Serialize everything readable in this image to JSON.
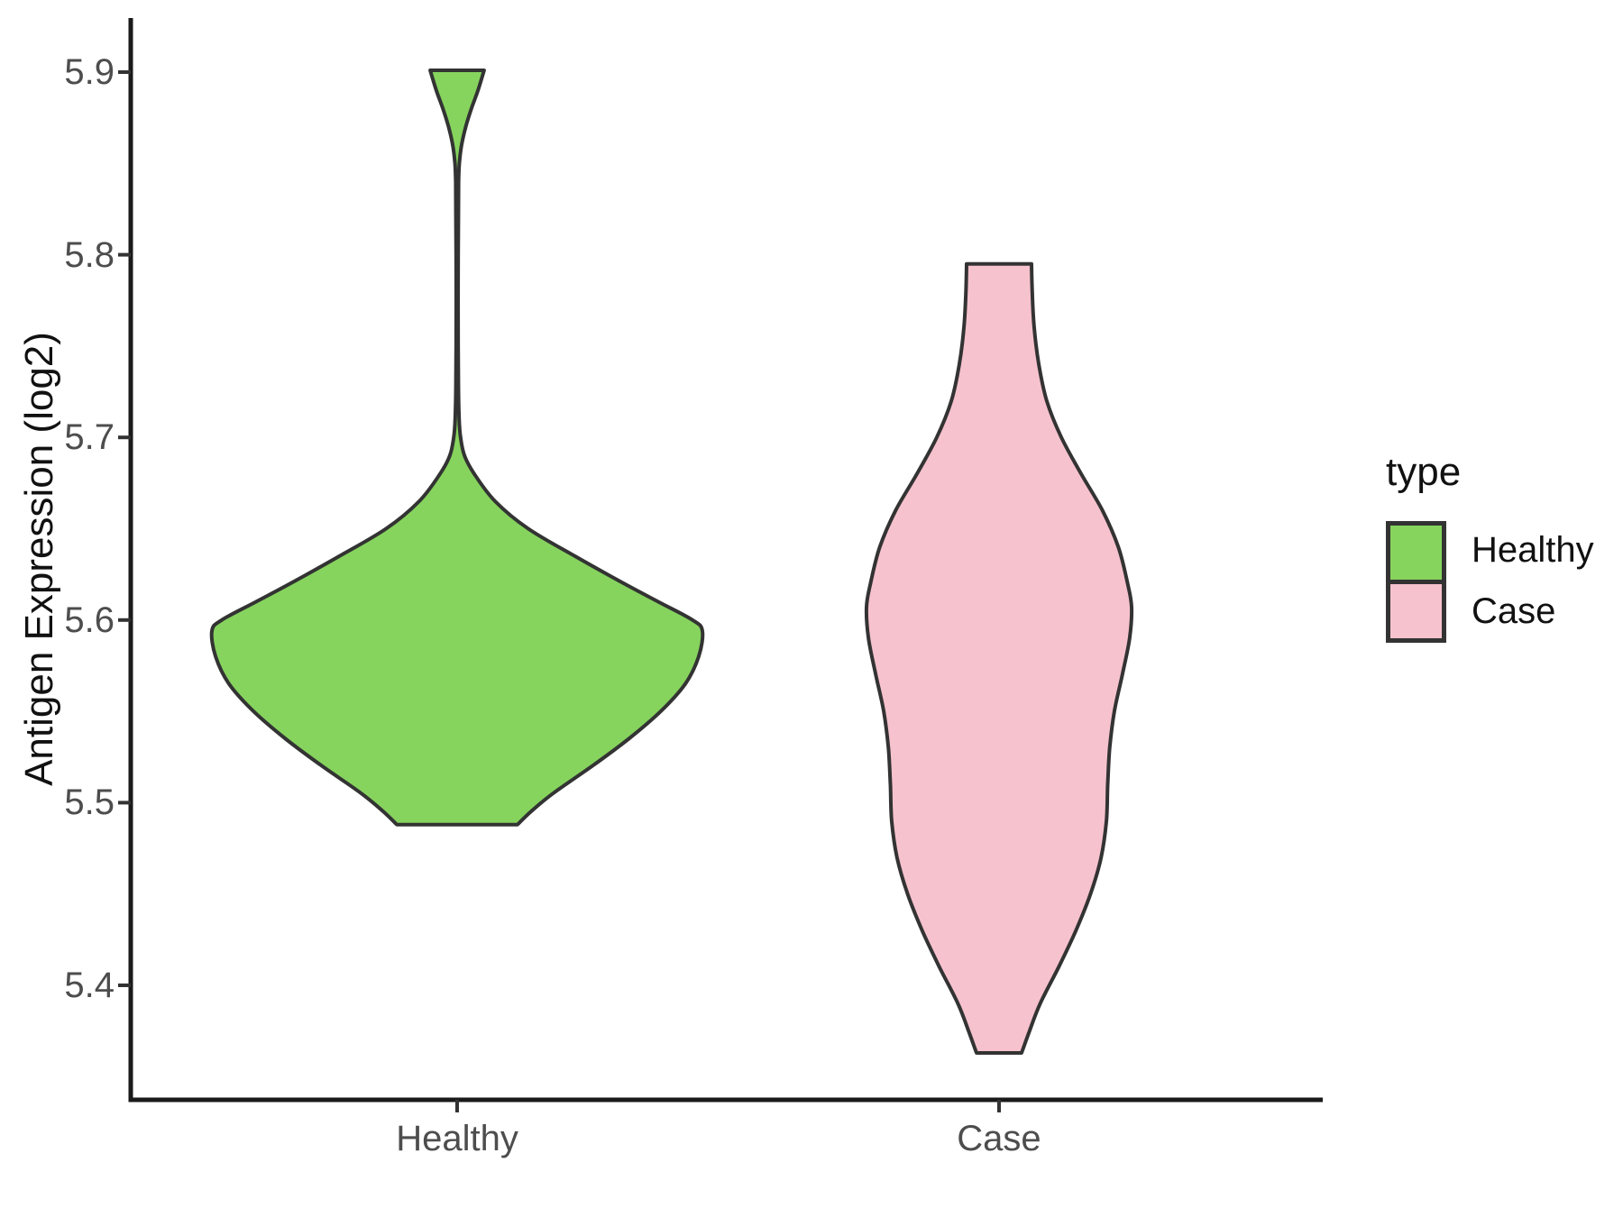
{
  "chart_data": {
    "type": "violin",
    "title": "",
    "xlabel": "",
    "ylabel": "Antigen Expression (log2)",
    "categories": [
      "Healthy",
      "Case"
    ],
    "y_ticks": [
      "5.4",
      "5.5",
      "5.6",
      "5.7",
      "5.8",
      "5.9"
    ],
    "ylim": [
      5.33,
      5.96
    ],
    "grid": "off",
    "legend": {
      "title": "type",
      "position": "right",
      "entries": [
        {
          "label": "Healthy",
          "color": "#86d45e"
        },
        {
          "label": "Case",
          "color": "#f6c2ce"
        }
      ]
    },
    "style": {
      "outline_color": "#333333",
      "axis_color": "#1a1a1a",
      "tick_color": "#333333",
      "tick_label_color": "#4d4d4d",
      "background": "#ffffff"
    },
    "series": [
      {
        "name": "Healthy",
        "fill": "#86d45e",
        "y_min": 5.49,
        "y_max": 5.9,
        "peak_y": 5.6,
        "max_width_rel": 1.0,
        "profile": [
          [
            5.901,
            0.11
          ],
          [
            5.89,
            0.085
          ],
          [
            5.88,
            0.058
          ],
          [
            5.87,
            0.035
          ],
          [
            5.86,
            0.018
          ],
          [
            5.85,
            0.009
          ],
          [
            5.84,
            0.006
          ],
          [
            5.82,
            0.005
          ],
          [
            5.79,
            0.004
          ],
          [
            5.76,
            0.004
          ],
          [
            5.73,
            0.005
          ],
          [
            5.71,
            0.008
          ],
          [
            5.7,
            0.014
          ],
          [
            5.69,
            0.03
          ],
          [
            5.68,
            0.07
          ],
          [
            5.665,
            0.155
          ],
          [
            5.65,
            0.29
          ],
          [
            5.635,
            0.48
          ],
          [
            5.62,
            0.68
          ],
          [
            5.61,
            0.82
          ],
          [
            5.6,
            0.96
          ],
          [
            5.594,
            1.0
          ],
          [
            5.58,
            0.985
          ],
          [
            5.565,
            0.93
          ],
          [
            5.55,
            0.83
          ],
          [
            5.535,
            0.7
          ],
          [
            5.52,
            0.55
          ],
          [
            5.505,
            0.39
          ],
          [
            5.495,
            0.3
          ],
          [
            5.488,
            0.246
          ]
        ]
      },
      {
        "name": "Case",
        "fill": "#f6c2ce",
        "y_min": 5.36,
        "y_max": 5.8,
        "peak_y": 5.61,
        "max_width_rel": 0.54,
        "profile": [
          [
            5.795,
            0.245
          ],
          [
            5.78,
            0.25
          ],
          [
            5.76,
            0.265
          ],
          [
            5.74,
            0.3
          ],
          [
            5.72,
            0.36
          ],
          [
            5.7,
            0.47
          ],
          [
            5.68,
            0.62
          ],
          [
            5.66,
            0.78
          ],
          [
            5.64,
            0.9
          ],
          [
            5.62,
            0.97
          ],
          [
            5.607,
            1.0
          ],
          [
            5.59,
            0.985
          ],
          [
            5.57,
            0.93
          ],
          [
            5.55,
            0.87
          ],
          [
            5.53,
            0.835
          ],
          [
            5.51,
            0.82
          ],
          [
            5.49,
            0.81
          ],
          [
            5.47,
            0.77
          ],
          [
            5.45,
            0.69
          ],
          [
            5.43,
            0.58
          ],
          [
            5.41,
            0.45
          ],
          [
            5.39,
            0.31
          ],
          [
            5.375,
            0.23
          ],
          [
            5.363,
            0.17
          ]
        ]
      }
    ]
  }
}
